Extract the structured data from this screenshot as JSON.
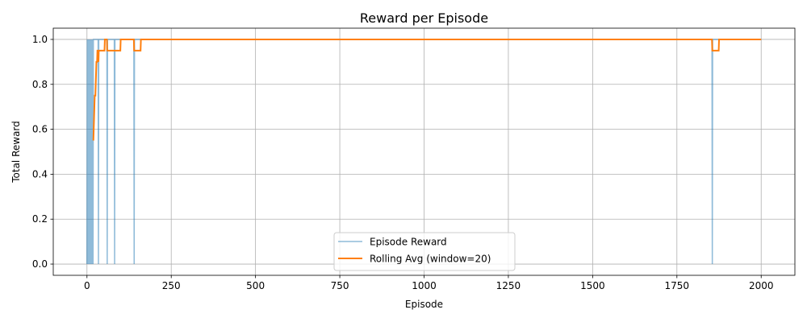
{
  "chart_data": {
    "type": "line",
    "title": "Reward per Episode",
    "xlabel": "Episode",
    "ylabel": "Total Reward",
    "xlim": [
      -100,
      2100
    ],
    "ylim": [
      -0.05,
      1.05
    ],
    "xticks": [
      0,
      250,
      500,
      750,
      1000,
      1250,
      1500,
      1750,
      2000
    ],
    "yticks": [
      0.0,
      0.2,
      0.4,
      0.6,
      0.8,
      1.0
    ],
    "xtick_labels": [
      "0",
      "250",
      "500",
      "750",
      "1000",
      "1250",
      "1500",
      "1750",
      "2000"
    ],
    "ytick_labels": [
      "0.0",
      "0.2",
      "0.4",
      "0.6",
      "0.8",
      "1.0"
    ],
    "grid": true,
    "legend_position": "bottom-center",
    "series": [
      {
        "name": "Episode Reward",
        "color": "#1f77b4",
        "alpha": 0.5,
        "linewidth": 1.5,
        "x": [
          0,
          1,
          2,
          3,
          4,
          5,
          6,
          7,
          8,
          9,
          10,
          11,
          12,
          13,
          14,
          15,
          16,
          17,
          18,
          19,
          20,
          21,
          33,
          34,
          35,
          59,
          60,
          61,
          81,
          82,
          83,
          139,
          140,
          141,
          1854,
          1855,
          1856,
          2000
        ],
        "y": [
          0,
          1,
          0,
          1,
          0,
          1,
          0,
          1,
          0,
          1,
          0,
          1,
          0,
          1,
          0,
          1,
          0,
          1,
          0,
          1,
          1,
          1,
          1,
          0,
          1,
          1,
          0,
          1,
          1,
          0,
          1,
          1,
          0,
          1,
          1,
          0,
          1,
          1
        ]
      },
      {
        "name": "Rolling Avg (window=20)",
        "color": "#ff7f0e",
        "alpha": 1.0,
        "linewidth": 2,
        "x": [
          19,
          20,
          21,
          22,
          23,
          24,
          25,
          26,
          27,
          28,
          29,
          30,
          31,
          32,
          33,
          34,
          35,
          36,
          52,
          53,
          54,
          55,
          59,
          60,
          61,
          79,
          80,
          81,
          99,
          100,
          101,
          139,
          140,
          141,
          159,
          160,
          161,
          1854,
          1855,
          1856,
          1874,
          1875,
          2000
        ],
        "y": [
          0.55,
          0.6,
          0.65,
          0.7,
          0.75,
          0.75,
          0.75,
          0.8,
          0.85,
          0.9,
          0.9,
          0.9,
          0.95,
          0.95,
          0.95,
          0.9,
          0.95,
          0.95,
          0.95,
          1.0,
          1.0,
          1.0,
          1.0,
          0.95,
          0.95,
          0.95,
          0.95,
          0.95,
          0.95,
          1.0,
          1.0,
          1.0,
          0.95,
          0.95,
          0.95,
          1.0,
          1.0,
          1.0,
          0.95,
          0.95,
          0.95,
          1.0,
          1.0
        ]
      }
    ]
  }
}
